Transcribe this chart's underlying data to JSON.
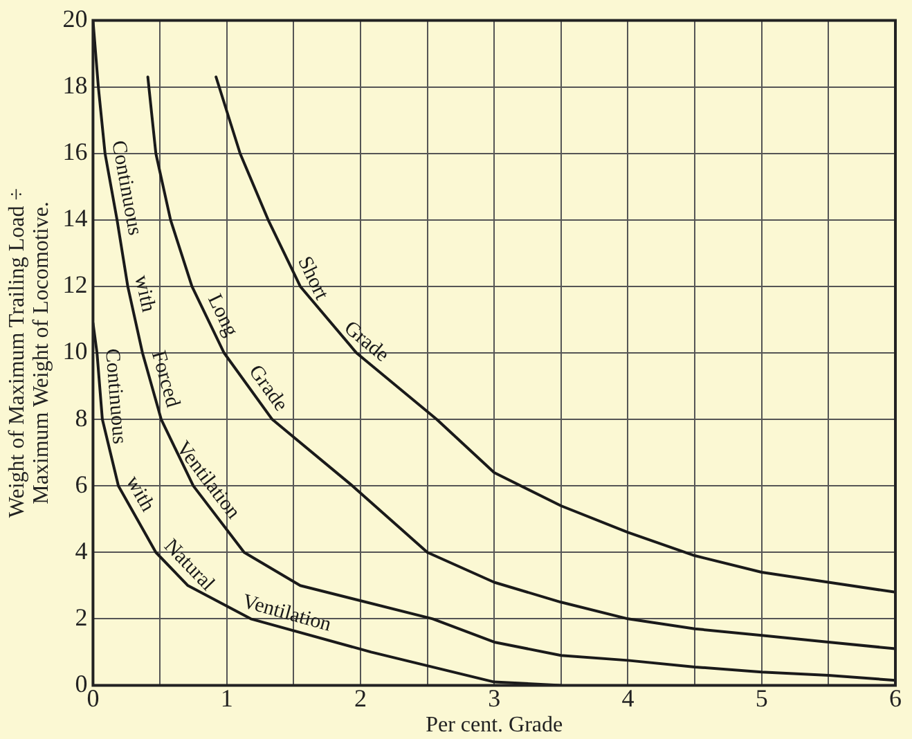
{
  "chart_data": {
    "type": "line",
    "xlabel": "Per cent. Grade",
    "ylabel": "Weight of Maximum Trailing Load ÷ Maximum Weight of Locomotive.",
    "xlim": [
      0,
      6
    ],
    "ylim": [
      0,
      20
    ],
    "xticks": [
      0,
      {
        "value": 0.5,
        "label": null
      },
      1,
      {
        "value": 1.5,
        "label": null
      },
      2,
      {
        "value": 2.5,
        "label": null
      },
      3,
      {
        "value": 3.5,
        "label": null
      },
      4,
      {
        "value": 4.5,
        "label": null
      },
      5,
      {
        "value": 5.5,
        "label": null
      },
      6
    ],
    "yticks": [
      0,
      2,
      4,
      6,
      8,
      10,
      12,
      14,
      16,
      18,
      20
    ],
    "grid": true,
    "legend": false,
    "marker": "none",
    "line_style": "solid",
    "series": [
      {
        "name": "Short Grade",
        "color": "#1a1a1a",
        "x": [
          0.92,
          1.1,
          1.31,
          1.55,
          1.97,
          2.57,
          3,
          3.5,
          4,
          4.5,
          5,
          5.5,
          6
        ],
        "values": [
          18.3,
          16,
          14,
          12,
          10,
          8,
          6.4,
          5.4,
          4.6,
          3.9,
          3.4,
          3.1,
          2.8
        ]
      },
      {
        "name": "Long Grade",
        "color": "#1a1a1a",
        "x": [
          0.41,
          0.47,
          0.58,
          0.74,
          0.98,
          1.34,
          1.94,
          2.5,
          3,
          3.5,
          4,
          4.5,
          5,
          5.5,
          6
        ],
        "values": [
          18.3,
          16,
          14,
          12,
          10,
          8,
          6,
          4,
          3.1,
          2.5,
          2,
          1.7,
          1.5,
          1.3,
          1.1
        ]
      },
      {
        "name": "Continuous with Forced Ventilation",
        "color": "#1a1a1a",
        "x": [
          0,
          0.04,
          0.09,
          0.18,
          0.26,
          0.37,
          0.51,
          0.75,
          1.13,
          1.55,
          2.54,
          3,
          3.5,
          4,
          4.5,
          5,
          5.5,
          6
        ],
        "values": [
          20,
          18,
          16,
          14,
          12,
          10,
          8,
          6,
          4,
          3,
          2,
          1.3,
          0.9,
          0.75,
          0.55,
          0.4,
          0.3,
          0.15
        ]
      },
      {
        "name": "Continuous with Natural Ventilation",
        "color": "#1a1a1a",
        "x": [
          0,
          0.03,
          0.07,
          0.19,
          0.47,
          0.71,
          1.18,
          2.08,
          3,
          3.5
        ],
        "values": [
          10.9,
          10,
          8,
          6,
          4,
          3,
          2,
          1,
          0.1,
          0
        ]
      }
    ]
  }
}
